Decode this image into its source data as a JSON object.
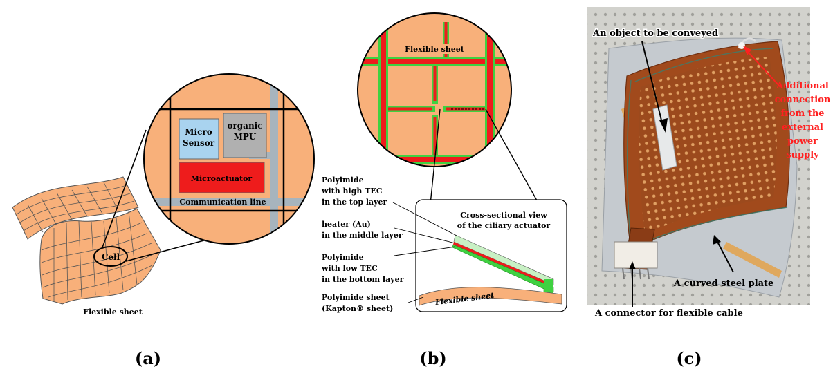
{
  "panel_a": {
    "cell_label": "Cell",
    "sheet_label": "Flexible sheet",
    "micro_sensor": [
      "Micro",
      "Sensor"
    ],
    "mpu": [
      "organic",
      "MPU"
    ],
    "microactuator": "Microactuator",
    "communication_line": "Communication line",
    "caption": "(a)"
  },
  "panel_b": {
    "sheet_label": "Flexible sheet",
    "cross_title": [
      "Cross-sectional view",
      "of the ciliary actuator"
    ],
    "polyimide_high": [
      "Polyimide",
      "with high TEC",
      "in the top layer"
    ],
    "heater": [
      "heater (Au)",
      "in the middle layer"
    ],
    "polyimide_low": [
      "Polyimide",
      "with low TEC",
      "in the bottom layer"
    ],
    "polyimide_sheet": [
      "Polyimide sheet",
      "(Kapton® sheet)"
    ],
    "inset_sheet_label": "Flexible sheet",
    "caption": "(b)"
  },
  "panel_c": {
    "object_label": "An object to be conveyed",
    "additional": [
      "Additional",
      "connection",
      "from the",
      "external",
      "power",
      "supply"
    ],
    "steel_plate": "A curved steel plate",
    "connector": "A connector for flexible cable",
    "caption": "(c)"
  },
  "colors": {
    "sheet": "#f8b07a",
    "red": "#ee1c1c",
    "green": "#3fd141",
    "sensor": "#a9d3ef",
    "mpu": "#b0b0b0",
    "line": "#a7b4bd",
    "annotation_red": "#ff2020"
  }
}
